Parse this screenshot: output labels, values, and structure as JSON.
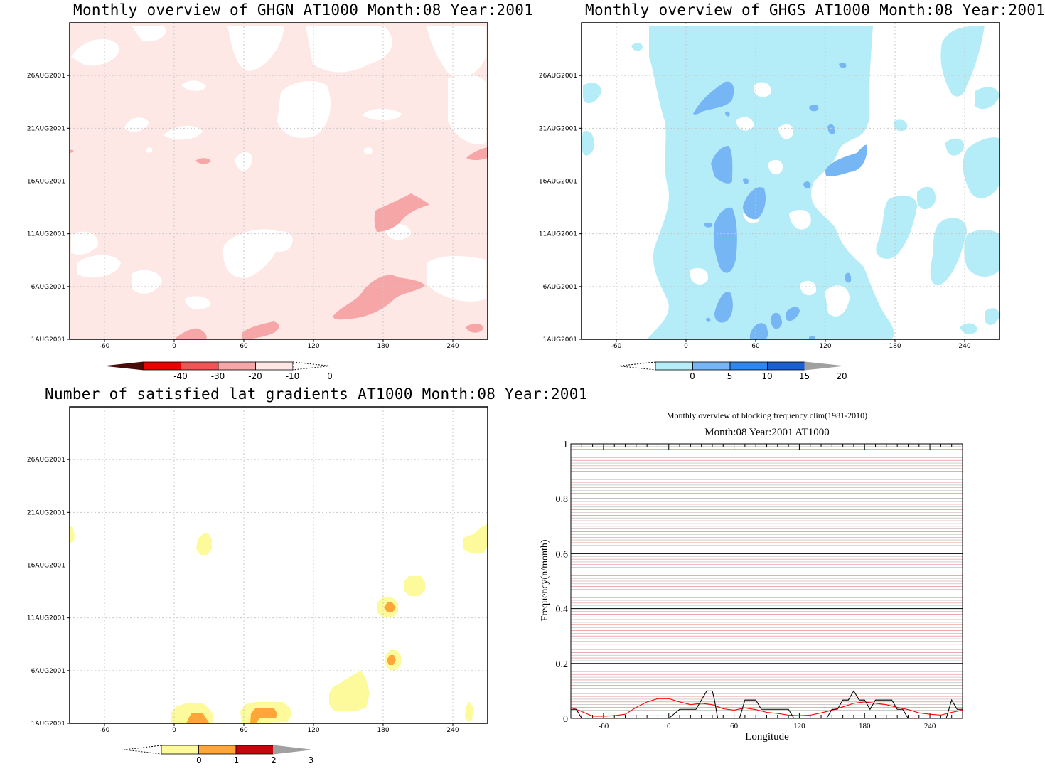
{
  "panels": {
    "ghgn": {
      "title": "Monthly overview of GHGN AT1000 Month:08 Year:2001",
      "x_ticks": [
        "-60",
        "0",
        "60",
        "120",
        "180",
        "240"
      ],
      "y_ticks": [
        "1AUG2001",
        "6AUG2001",
        "11AUG2001",
        "16AUG2001",
        "21AUG2001",
        "26AUG2001"
      ],
      "colorbar": {
        "labels": [
          "-40",
          "-30",
          "-20",
          "-10",
          "0"
        ],
        "colors": [
          "#4a0b0b",
          "#ee0000",
          "#f05555",
          "#f6a6a6",
          "#fde8e6",
          "#ffffff"
        ]
      }
    },
    "ghgs": {
      "title": "Monthly overview of GHGS AT1000 Month:08 Year:2001",
      "x_ticks": [
        "-60",
        "0",
        "60",
        "120",
        "180",
        "240"
      ],
      "y_ticks": [
        "1AUG2001",
        "6AUG2001",
        "11AUG2001",
        "16AUG2001",
        "21AUG2001",
        "26AUG2001"
      ],
      "colorbar": {
        "labels": [
          "0",
          "5",
          "10",
          "15",
          "20"
        ],
        "colors": [
          "#ffffff",
          "#b4ecf7",
          "#76b6f5",
          "#2f86ec",
          "#1c5fd0",
          "#a0a0a0"
        ]
      }
    },
    "lat_gradients": {
      "title": "Number of satisfied lat gradients AT1000 Month:08 Year:2001",
      "x_ticks": [
        "-60",
        "0",
        "60",
        "120",
        "180",
        "240"
      ],
      "y_ticks": [
        "1AUG2001",
        "6AUG2001",
        "11AUG2001",
        "16AUG2001",
        "21AUG2001",
        "26AUG2001"
      ],
      "colorbar": {
        "labels": [
          "0",
          "1",
          "2",
          "3"
        ],
        "colors": [
          "#ffffff",
          "#fdfa9c",
          "#fea63a",
          "#c6040c",
          "#a0a0a0"
        ]
      }
    },
    "blocking": {
      "title": "Monthly overview of blocking frequency clim(1981-2010)",
      "subtitle": "Month:08 Year:2001  AT1000",
      "xlabel": "Longitude",
      "ylabel": "Frequency(n/month)",
      "x_ticks": [
        "-60",
        "0",
        "60",
        "120",
        "180",
        "240"
      ],
      "y_ticks": [
        "0",
        "0.2",
        "0.4",
        "0.6",
        "0.8",
        "1"
      ]
    }
  },
  "chart_data": [
    {
      "type": "heatmap",
      "title": "Monthly overview of GHGN AT1000 Month:08 Year:2001",
      "xlim": [
        -90,
        270
      ],
      "ylim": [
        "1AUG2001",
        "31AUG2001"
      ],
      "levels": [
        -40,
        -30,
        -20,
        -10,
        0
      ],
      "colors": [
        "#4a0b0b",
        "#ee0000",
        "#f05555",
        "#f6a6a6",
        "#fde8e6",
        "#ffffff"
      ],
      "regions": [
        {
          "level": "-20 to -10",
          "lon_range": [
            148,
            230
          ],
          "dates": [
            "2AUG2001",
            "7AUG2001"
          ]
        },
        {
          "level": "-20 to -10",
          "lon_range": [
            185,
            230
          ],
          "dates": [
            "11AUG2001",
            "14AUG2001"
          ]
        },
        {
          "level": "-20 to -10",
          "lon_range": [
            253,
            275
          ],
          "dates": [
            "1AUG2001",
            "2AUG2001"
          ]
        },
        {
          "level": "-20 to -10",
          "lon_range": [
            65,
            105
          ],
          "dates": [
            "1AUG2001",
            "2AUG2001"
          ]
        },
        {
          "level": "-20 to -10",
          "lon_range": [
            260,
            275
          ],
          "dates": [
            "18AUG2001",
            "19AUG2001"
          ]
        },
        {
          "level": "-10 to 0",
          "coverage": "most of domain"
        }
      ],
      "grid": true
    },
    {
      "type": "heatmap",
      "title": "Monthly overview of GHGS AT1000 Month:08 Year:2001",
      "xlim": [
        -90,
        270
      ],
      "ylim": [
        "1AUG2001",
        "31AUG2001"
      ],
      "levels": [
        0,
        5,
        10,
        15,
        20
      ],
      "colors": [
        "#ffffff",
        "#b4ecf7",
        "#76b6f5",
        "#2f86ec",
        "#1c5fd0",
        "#a0a0a0"
      ],
      "regions": [
        {
          "level": "0 to 5",
          "lon_range": [
            -20,
            170
          ],
          "dates": [
            "1AUG2001",
            "31AUG2001"
          ]
        },
        {
          "level": "5 to 10",
          "lon_range": [
            25,
            55
          ],
          "dates": [
            "7AUG2001",
            "13AUG2001"
          ]
        },
        {
          "level": "5 to 10",
          "lon_range": [
            15,
            50
          ],
          "dates": [
            "23AUG2001",
            "25AUG2001"
          ]
        },
        {
          "level": "5 to 10",
          "lon_range": [
            30,
            50
          ],
          "dates": [
            "16AUG2001",
            "19AUG2001"
          ]
        },
        {
          "level": "5 to 10",
          "lon_range": [
            130,
            165
          ],
          "dates": [
            "16AUG2001",
            "19AUG2001"
          ]
        },
        {
          "level": "5 to 10",
          "lon_range": [
            65,
            80
          ],
          "dates": [
            "12AUG2001",
            "15AUG2001"
          ]
        }
      ],
      "grid": true
    },
    {
      "type": "heatmap",
      "title": "Number of satisfied lat gradients AT1000 Month:08 Year:2001",
      "xlim": [
        -90,
        270
      ],
      "ylim": [
        "1AUG2001",
        "31AUG2001"
      ],
      "levels": [
        0,
        1,
        2,
        3
      ],
      "colors": [
        "#ffffff",
        "#fdfa9c",
        "#fea63a",
        "#c6040c",
        "#a0a0a0"
      ],
      "regions": [
        {
          "level": "0 to 1",
          "lon_range": [
            -90,
            -85
          ],
          "dates": [
            "18AUG2001",
            "19AUG2001"
          ]
        },
        {
          "level": "0 to 1",
          "lon_range": [
            28,
            42
          ],
          "dates": [
            "17AUG2001",
            "19AUG2001"
          ]
        },
        {
          "level": "0 to 1",
          "lon_range": [
            252,
            270
          ],
          "dates": [
            "17AUG2001",
            "19AUG2001"
          ]
        },
        {
          "level": "0 to 1",
          "lon_range": [
            205,
            222
          ],
          "dates": [
            "13AUG2001",
            "15AUG2001"
          ]
        },
        {
          "level": "0 to 2",
          "lon_range": [
            185,
            200
          ],
          "dates": [
            "11AUG2001",
            "13AUG2001"
          ]
        },
        {
          "level": "0 to 2",
          "lon_range": [
            190,
            202
          ],
          "dates": [
            "6AUG2001",
            "8AUG2001"
          ]
        },
        {
          "level": "0 to 1",
          "lon_range": [
            142,
            178
          ],
          "dates": [
            "2AUG2001",
            "5AUG2001"
          ]
        },
        {
          "level": "0 to 2",
          "lon_range": [
            7,
            42
          ],
          "dates": [
            "1AUG2001",
            "2AUG2001"
          ]
        },
        {
          "level": "0 to 2",
          "lon_range": [
            66,
            110
          ],
          "dates": [
            "1AUG2001",
            "2AUG2001"
          ]
        },
        {
          "level": "0 to 1",
          "lon_range": [
            257,
            263
          ],
          "dates": [
            "1AUG2001",
            "2AUG2001"
          ]
        }
      ],
      "grid": true
    },
    {
      "type": "line",
      "title": "Monthly overview of blocking frequency clim(1981-2010)",
      "subtitle": "Month:08 Year:2001  AT1000",
      "xlabel": "Longitude",
      "ylabel": "Frequency(n/month)",
      "xlim": [
        -90,
        270
      ],
      "ylim": [
        0,
        1
      ],
      "series": [
        {
          "color": "#ff0000",
          "x": [
            -90,
            -80,
            -70,
            -60,
            -50,
            -40,
            -30,
            -20,
            -10,
            0,
            10,
            20,
            30,
            40,
            50,
            60,
            70,
            80,
            90,
            100,
            110,
            120,
            130,
            140,
            150,
            160,
            170,
            180,
            190,
            200,
            210,
            220,
            230,
            240,
            250,
            260,
            270
          ],
          "values": [
            0.04,
            0.025,
            0.008,
            0.008,
            0.01,
            0.015,
            0.04,
            0.06,
            0.072,
            0.072,
            0.06,
            0.05,
            0.055,
            0.05,
            0.035,
            0.03,
            0.038,
            0.032,
            0.022,
            0.018,
            0.012,
            0.01,
            0.012,
            0.02,
            0.03,
            0.042,
            0.055,
            0.06,
            0.055,
            0.05,
            0.04,
            0.032,
            0.02,
            0.015,
            0.012,
            0.022,
            0.03
          ]
        },
        {
          "color": "#000000",
          "x": [
            -90,
            -85,
            -80,
            -75,
            -60,
            -30,
            0,
            10,
            20,
            25,
            30,
            35,
            40,
            42,
            45,
            65,
            70,
            80,
            85,
            95,
            100,
            110,
            115,
            120,
            130,
            145,
            150,
            155,
            160,
            165,
            170,
            175,
            180,
            185,
            190,
            195,
            200,
            205,
            210,
            215,
            220,
            230,
            240,
            250,
            255,
            260,
            265,
            268,
            270
          ],
          "values": [
            0.033,
            0.033,
            0,
            0,
            0,
            0,
            0,
            0.033,
            0.033,
            0.033,
            0.067,
            0.1,
            0.1,
            0.067,
            0,
            0,
            0.067,
            0.067,
            0.033,
            0.033,
            0.033,
            0.033,
            0,
            0,
            0,
            0,
            0.033,
            0.033,
            0.067,
            0.067,
            0.1,
            0.067,
            0.067,
            0.033,
            0.067,
            0.067,
            0.067,
            0.067,
            0.033,
            0.033,
            0,
            0,
            0,
            0,
            0,
            0.067,
            0.033,
            0.033,
            0.033
          ]
        }
      ],
      "grid": true
    }
  ]
}
